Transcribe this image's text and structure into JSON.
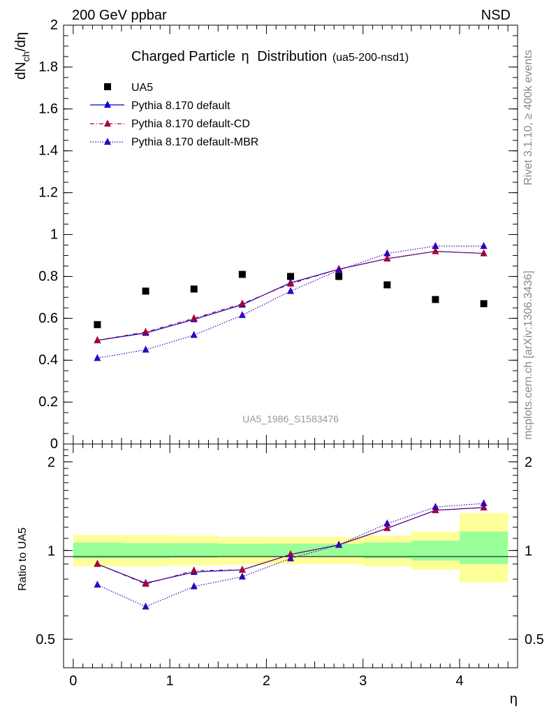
{
  "header": {
    "left": "200 GeV ppbar",
    "right": "NSD"
  },
  "side": {
    "top": "Rivet 3.1.10, ≥ 400k events",
    "bottom": "mcplots.cern.ch [arXiv:1306.3436]"
  },
  "colors": {
    "data": "#000000",
    "default": "#0000cc",
    "cd": "#aa0033",
    "mbr": "#3300bb",
    "band_outer": "#ffff99",
    "band_inner": "#99ff99"
  },
  "chart_data": [
    {
      "type": "scatter",
      "title": "Charged Particle",
      "title_symbol": "η",
      "title_suffix": "Distribution",
      "title_tag": "(ua5-200-nsd1)",
      "ylabel_main": "dN",
      "ylabel_sub": "ch",
      "ylabel_tail": "/dη",
      "watermark": "UA5_1986_S1583476",
      "ylim": [
        0,
        2
      ],
      "y_ticks": [
        "0",
        "0.2",
        "0.4",
        "0.6",
        "0.8",
        "1",
        "1.2",
        "1.4",
        "1.6",
        "1.8",
        "2"
      ],
      "x": [
        0.25,
        0.75,
        1.25,
        1.75,
        2.25,
        2.75,
        3.25,
        3.75,
        4.25
      ],
      "x_bin_edges": [
        0,
        0.5,
        1,
        1.5,
        2,
        2.5,
        3,
        3.5,
        4,
        4.5
      ],
      "series": [
        {
          "name": "UA5",
          "style": "data",
          "values": [
            0.57,
            0.73,
            0.74,
            0.81,
            0.8,
            0.8,
            0.76,
            0.69,
            0.67
          ]
        },
        {
          "name": "Pythia 8.170 default",
          "style": "default",
          "values": [
            0.495,
            0.53,
            0.595,
            0.665,
            0.77,
            0.835,
            0.885,
            0.92,
            0.91
          ]
        },
        {
          "name": "Pythia 8.170 default-CD",
          "style": "cd",
          "values": [
            0.495,
            0.535,
            0.6,
            0.67,
            0.765,
            0.835,
            0.885,
            0.92,
            0.91
          ]
        },
        {
          "name": "Pythia 8.170 default-MBR",
          "style": "mbr",
          "values": [
            0.41,
            0.45,
            0.52,
            0.615,
            0.73,
            0.83,
            0.91,
            0.945,
            0.945
          ]
        }
      ]
    },
    {
      "type": "line",
      "ylabel": "Ratio to UA5",
      "xlabel": "η",
      "yscale": "log",
      "ylim": [
        0.4,
        2.3
      ],
      "y_ticks": [
        "0.5",
        "1",
        "2"
      ],
      "y_tick_values": [
        0.5,
        1,
        2
      ],
      "x_ticks": [
        "0",
        "1",
        "2",
        "3",
        "4"
      ],
      "x_tick_values": [
        0,
        1,
        2,
        3,
        4
      ],
      "xlim": [
        -0.1,
        4.6
      ],
      "x": [
        0.25,
        0.75,
        1.25,
        1.75,
        2.25,
        2.75,
        3.25,
        3.75,
        4.25
      ],
      "bands": {
        "edges": [
          0,
          0.5,
          1,
          1.5,
          2,
          2.5,
          3,
          3.5,
          4,
          4.5
        ],
        "outer_lo": [
          0.885,
          0.885,
          0.89,
          0.895,
          0.9,
          0.9,
          0.885,
          0.86,
          0.78
        ],
        "outer_hi": [
          1.13,
          1.13,
          1.125,
          1.115,
          1.11,
          1.11,
          1.125,
          1.16,
          1.34
        ],
        "inner_lo": [
          0.94,
          0.94,
          0.945,
          0.95,
          0.95,
          0.95,
          0.94,
          0.925,
          0.9
        ],
        "inner_hi": [
          1.065,
          1.06,
          1.06,
          1.055,
          1.055,
          1.055,
          1.065,
          1.08,
          1.16
        ]
      },
      "series": [
        {
          "name": "Pythia 8.170 default",
          "style": "default",
          "values": [
            0.9,
            0.775,
            0.845,
            0.86,
            0.97,
            1.045,
            1.19,
            1.37,
            1.4
          ]
        },
        {
          "name": "Pythia 8.170 default-CD",
          "style": "cd",
          "values": [
            0.9,
            0.77,
            0.855,
            0.86,
            0.97,
            1.045,
            1.19,
            1.37,
            1.4
          ]
        },
        {
          "name": "Pythia 8.170 default-MBR",
          "style": "mbr",
          "values": [
            0.765,
            0.645,
            0.755,
            0.815,
            0.94,
            1.045,
            1.235,
            1.405,
            1.445
          ]
        }
      ]
    }
  ]
}
